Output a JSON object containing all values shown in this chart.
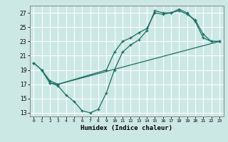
{
  "xlabel": "Humidex (Indice chaleur)",
  "bg_color": "#cce8e4",
  "grid_color": "#ffffff",
  "line_color": "#1a6e64",
  "xlim": [
    -0.5,
    23.5
  ],
  "ylim": [
    12.5,
    28.0
  ],
  "xticks": [
    0,
    1,
    2,
    3,
    4,
    5,
    6,
    7,
    8,
    9,
    10,
    11,
    12,
    13,
    14,
    15,
    16,
    17,
    18,
    19,
    20,
    21,
    22,
    23
  ],
  "yticks": [
    13,
    15,
    17,
    19,
    21,
    23,
    25,
    27
  ],
  "line1_x": [
    0,
    1,
    2,
    3,
    4,
    5,
    6,
    7,
    8,
    9,
    10,
    11,
    12,
    13,
    14,
    15,
    16,
    17,
    18,
    19,
    20,
    21,
    22,
    23
  ],
  "line1_y": [
    20.0,
    19.0,
    17.2,
    16.8,
    15.5,
    14.6,
    13.3,
    13.0,
    13.5,
    15.8,
    19.0,
    21.5,
    22.5,
    23.2,
    24.5,
    27.3,
    27.0,
    27.0,
    27.5,
    27.0,
    25.8,
    23.5,
    23.0,
    23.0
  ],
  "line2_x": [
    1,
    2,
    3,
    9,
    10,
    11,
    12,
    13,
    14,
    15,
    16,
    17,
    18,
    19,
    20,
    21,
    22,
    23
  ],
  "line2_y": [
    19.0,
    17.2,
    17.0,
    19.0,
    21.5,
    23.0,
    23.5,
    24.2,
    24.8,
    27.0,
    26.8,
    27.0,
    27.3,
    26.8,
    26.0,
    24.0,
    23.0,
    23.0
  ],
  "line3_x": [
    0,
    1,
    2,
    3,
    23
  ],
  "line3_y": [
    20.0,
    19.0,
    17.5,
    17.0,
    23.0
  ]
}
